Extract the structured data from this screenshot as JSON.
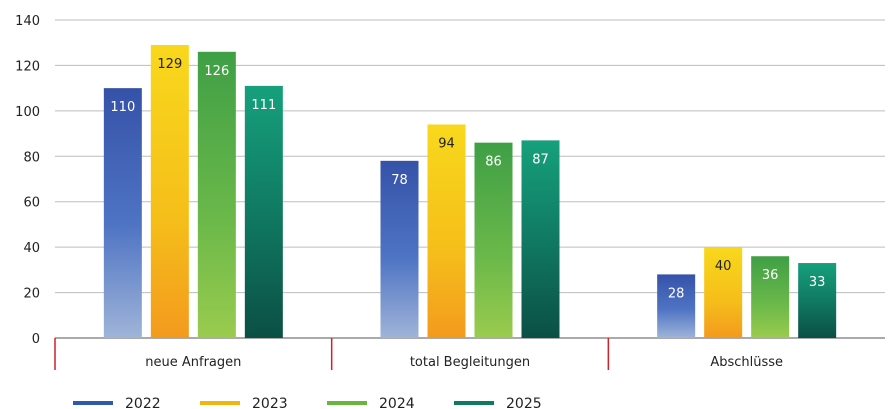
{
  "chart_data": {
    "type": "bar",
    "title": "",
    "xlabel": "",
    "ylabel": "",
    "ylim": [
      0,
      140
    ],
    "yticks": [
      0,
      20,
      40,
      60,
      80,
      100,
      120,
      140
    ],
    "grid": true,
    "legend_position": "bottom-left",
    "categories": [
      "neue Anfragen",
      "total Begleitungen",
      "Abschlüsse"
    ],
    "series": [
      {
        "name": "2022",
        "color": "#2e5aac",
        "values": [
          110,
          78,
          28
        ]
      },
      {
        "name": "2023",
        "color": "#f2b40f",
        "values": [
          129,
          94,
          40
        ]
      },
      {
        "name": "2024",
        "color": "#6ab53e",
        "values": [
          126,
          86,
          36
        ]
      },
      {
        "name": "2025",
        "color": "#0f7a64",
        "values": [
          111,
          87,
          33
        ]
      }
    ]
  }
}
